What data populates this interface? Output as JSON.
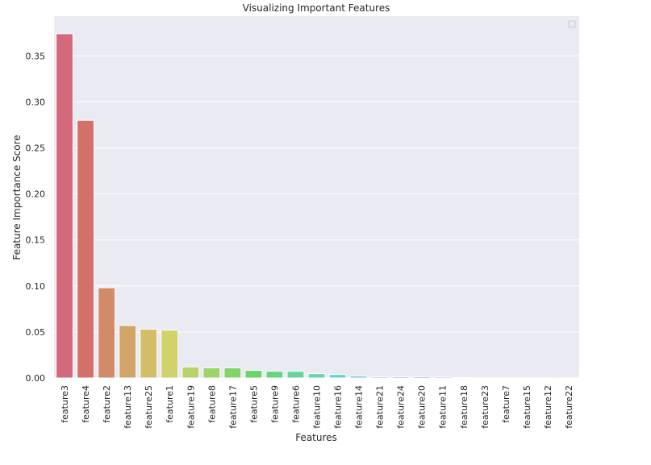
{
  "chart_data": {
    "type": "bar",
    "title": "Visualizing Important Features",
    "xlabel": "Features",
    "ylabel": "Feature Importance Score",
    "ylim": [
      0,
      0.393
    ],
    "yticks": [
      "0.00",
      "0.05",
      "0.10",
      "0.15",
      "0.20",
      "0.25",
      "0.30",
      "0.35"
    ],
    "grid": true,
    "legend": "top-right (empty)",
    "categories": [
      "feature3",
      "feature4",
      "feature2",
      "feature13",
      "feature25",
      "feature1",
      "feature19",
      "feature8",
      "feature17",
      "feature5",
      "feature9",
      "feature6",
      "feature10",
      "feature16",
      "feature14",
      "feature21",
      "feature24",
      "feature20",
      "feature11",
      "feature18",
      "feature23",
      "feature7",
      "feature15",
      "feature12",
      "feature22"
    ],
    "values": [
      0.374,
      0.28,
      0.098,
      0.057,
      0.053,
      0.052,
      0.012,
      0.011,
      0.011,
      0.0082,
      0.0073,
      0.0073,
      0.0047,
      0.0038,
      0.002,
      0.0012,
      0.0012,
      0.0012,
      0.0011,
      0.0005,
      0.0002,
      0.0002,
      0.0002,
      0.0001,
      0.0001
    ],
    "background": "#eaeaf2"
  }
}
